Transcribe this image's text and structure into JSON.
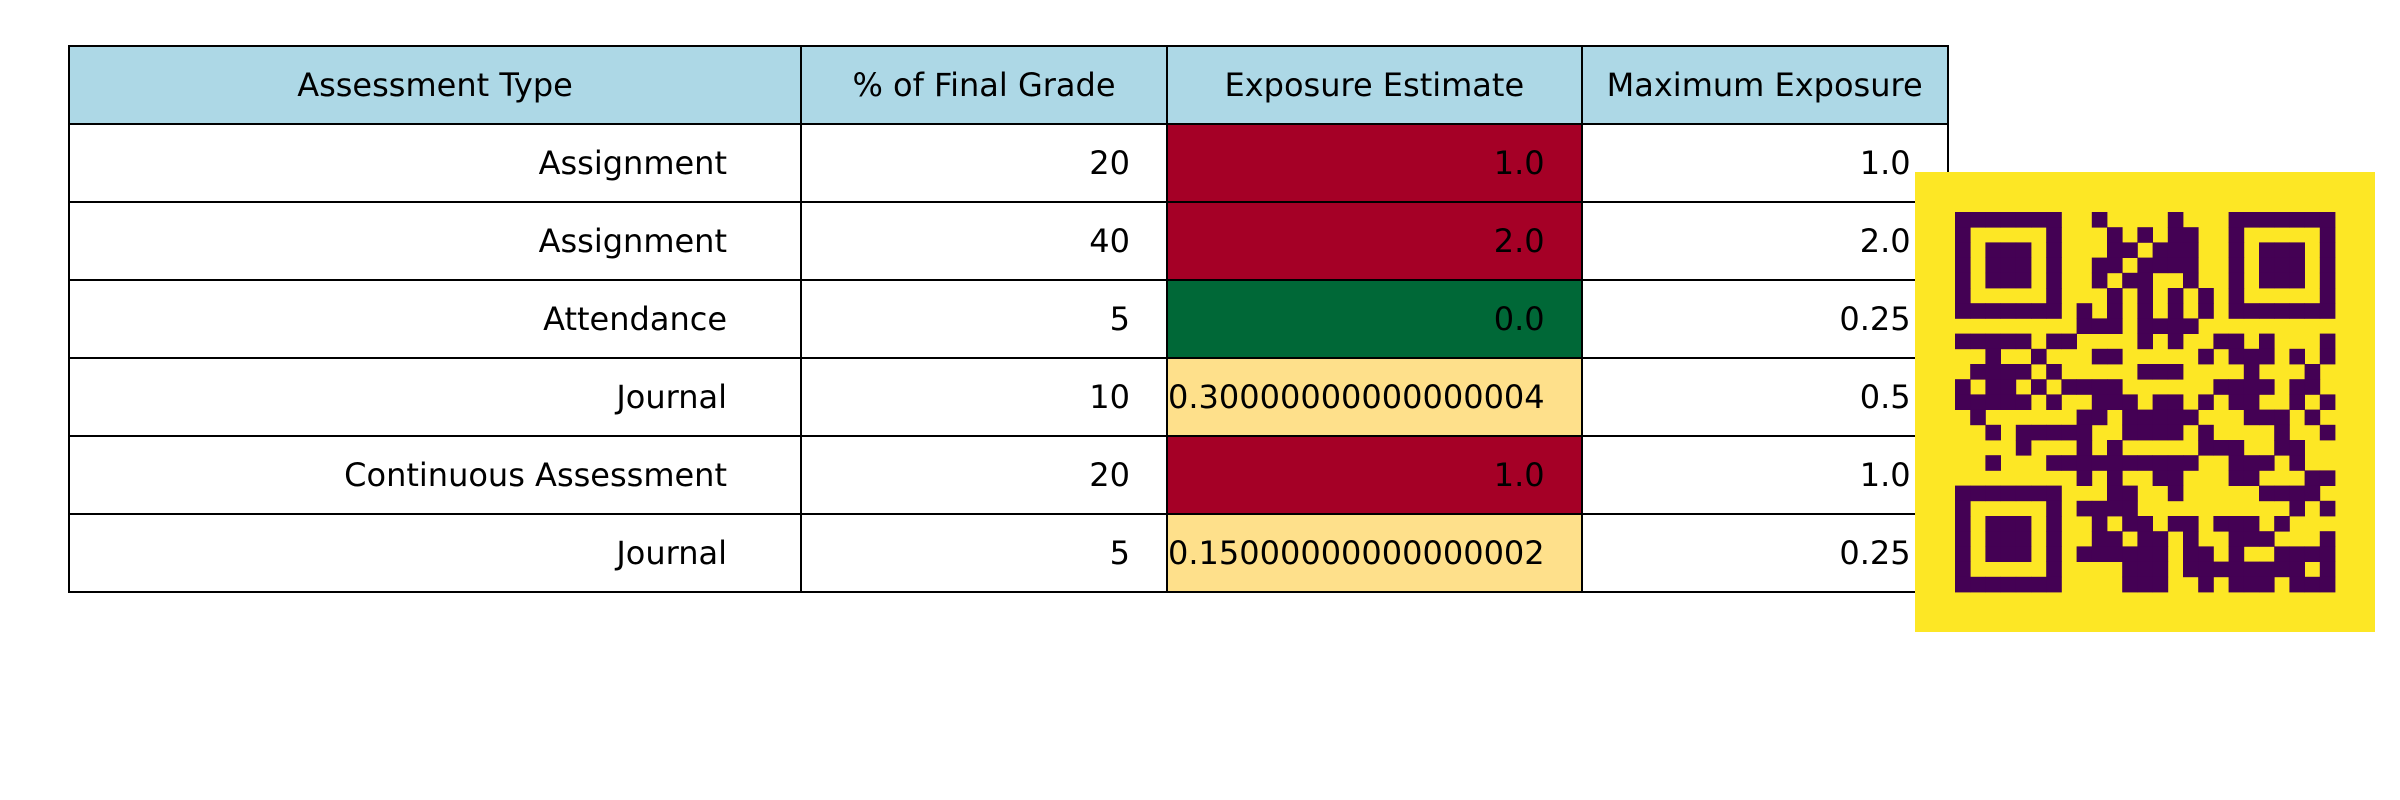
{
  "chart_data": {
    "type": "table",
    "columns": [
      "Assessment Type",
      "% of Final Grade",
      "Exposure Estimate",
      "Maximum Exposure"
    ],
    "rows": [
      [
        "Assignment",
        "20",
        "1.0",
        "1.0"
      ],
      [
        "Assignment",
        "40",
        "2.0",
        "2.0"
      ],
      [
        "Attendance",
        "5",
        "0.0",
        "0.25"
      ],
      [
        "Journal",
        "10",
        "0.30000000000000004",
        "0.5"
      ],
      [
        "Continuous Assessment",
        "20",
        "1.0",
        "1.0"
      ],
      [
        "Journal",
        "5",
        "0.15000000000000002",
        "0.25"
      ]
    ],
    "exposure_cell_colors": [
      "#a50026",
      "#a50026",
      "#006837",
      "#fee08b",
      "#a50026",
      "#fee08b"
    ],
    "header_color": "#add8e6"
  },
  "qr_code": {
    "background": "#fde725",
    "module_color": "#440154"
  }
}
